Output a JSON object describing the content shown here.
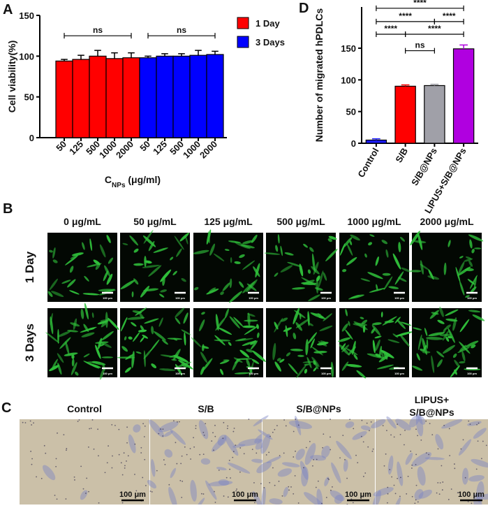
{
  "chart_data": [
    {
      "type": "bar",
      "panel": "A",
      "y_label": "Cell viability(%)",
      "x_label": {
        "main": "C",
        "sub": "NPs",
        "rest": " (μg/ml)"
      },
      "categories": [
        "50",
        "125",
        "500",
        "1000",
        "2000",
        "50",
        "125",
        "500",
        "1000",
        "2000"
      ],
      "series": [
        {
          "name": "1 Day",
          "color": "#ff0000",
          "values": [
            94,
            96,
            100,
            97,
            98,
            null,
            null,
            null,
            null,
            null
          ],
          "errors": [
            2,
            5,
            7,
            7,
            6,
            null,
            null,
            null,
            null,
            null
          ]
        },
        {
          "name": "3 Days",
          "color": "#0000ff",
          "values": [
            null,
            null,
            null,
            null,
            null,
            98,
            100,
            100,
            101,
            102
          ],
          "errors": [
            null,
            null,
            null,
            null,
            null,
            2,
            3,
            3,
            6,
            4
          ]
        }
      ],
      "ylim": [
        0,
        150
      ],
      "yticks": [
        0,
        50,
        100,
        150
      ],
      "annotations": [
        {
          "text": "ns",
          "from": 0,
          "to": 4,
          "y": 125
        },
        {
          "text": "ns",
          "from": 5,
          "to": 9,
          "y": 125
        }
      ]
    },
    {
      "type": "bar",
      "panel": "D",
      "y_label": "Number of migrated hPDLCs",
      "categories": [
        "Control",
        "S/B",
        "S/B@NPs",
        "LIPUS+S/B@NPs"
      ],
      "series": [
        {
          "colors": [
            "#1a1aff",
            "#ff0000",
            "#a0a0a8",
            "#b000e0"
          ],
          "values": [
            5,
            90,
            91,
            149
          ],
          "errors": [
            2,
            2,
            2,
            6
          ]
        }
      ],
      "ylim": [
        0,
        215
      ],
      "yticks": [
        0,
        50,
        100,
        150
      ],
      "annotations": [
        {
          "text": "****",
          "from": 0,
          "to": 3,
          "y": 213
        },
        {
          "text": "****",
          "from": 0,
          "to": 2,
          "y": 192
        },
        {
          "text": "****",
          "from": 2,
          "to": 3,
          "y": 192
        },
        {
          "text": "****",
          "from": 0,
          "to": 1,
          "y": 172
        },
        {
          "text": "****",
          "from": 1,
          "to": 3,
          "y": 172
        },
        {
          "text": "ns",
          "from": 1,
          "to": 2,
          "y": 146
        }
      ]
    }
  ],
  "panel_b": {
    "label": "B",
    "columns": [
      "0 μg/mL",
      "50 μg/mL",
      "125 μg/mL",
      "500 μg/mL",
      "1000 μg/mL",
      "2000 μg/mL"
    ],
    "rows": [
      "1 Day",
      "3 Days"
    ],
    "scale_bar": "100 μm"
  },
  "panel_c": {
    "label": "C",
    "columns": [
      "Control",
      "S/B",
      "S/B@NPs",
      [
        "LIPUS+",
        "S/B@NPs"
      ]
    ],
    "scale_bar": "100 μm"
  }
}
